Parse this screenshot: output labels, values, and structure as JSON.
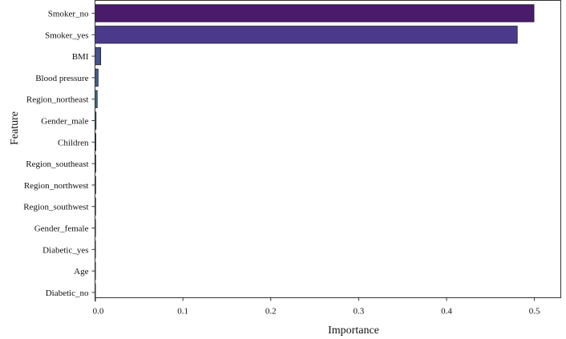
{
  "chart_data": {
    "type": "bar",
    "orientation": "horizontal",
    "xlabel": "Importance",
    "ylabel": "Feature",
    "xlim": [
      0,
      0.53
    ],
    "xticks": [
      0.0,
      0.1,
      0.2,
      0.3,
      0.4,
      0.5
    ],
    "xtick_labels": [
      "0.0",
      "0.1",
      "0.2",
      "0.3",
      "0.4",
      "0.5"
    ],
    "grid": false,
    "categories": [
      "Smoker_no",
      "Smoker_yes",
      "BMI",
      "Blood pressure",
      "Region_northeast",
      "Gender_male",
      "Children",
      "Region_southeast",
      "Region_northwest",
      "Region_southwest",
      "Gender_female",
      "Diabetic_yes",
      "Age",
      "Diabetic_no"
    ],
    "values": [
      0.4995,
      0.4805,
      0.0065,
      0.0035,
      0.0025,
      0.0012,
      0.001,
      0.0009,
      0.0008,
      0.0007,
      0.0006,
      0.0004,
      0.0003,
      0.0002
    ],
    "colors": [
      "#4a1a6b",
      "#4b3a8c",
      "#46508e",
      "#3f5e8c",
      "#33708c",
      "#2e7e8c",
      "#28908c",
      "#22a284",
      "#30b274",
      "#52c460",
      "#7ccf49",
      "#a9db33",
      "#cfe11c",
      "#f2e61c"
    ]
  }
}
